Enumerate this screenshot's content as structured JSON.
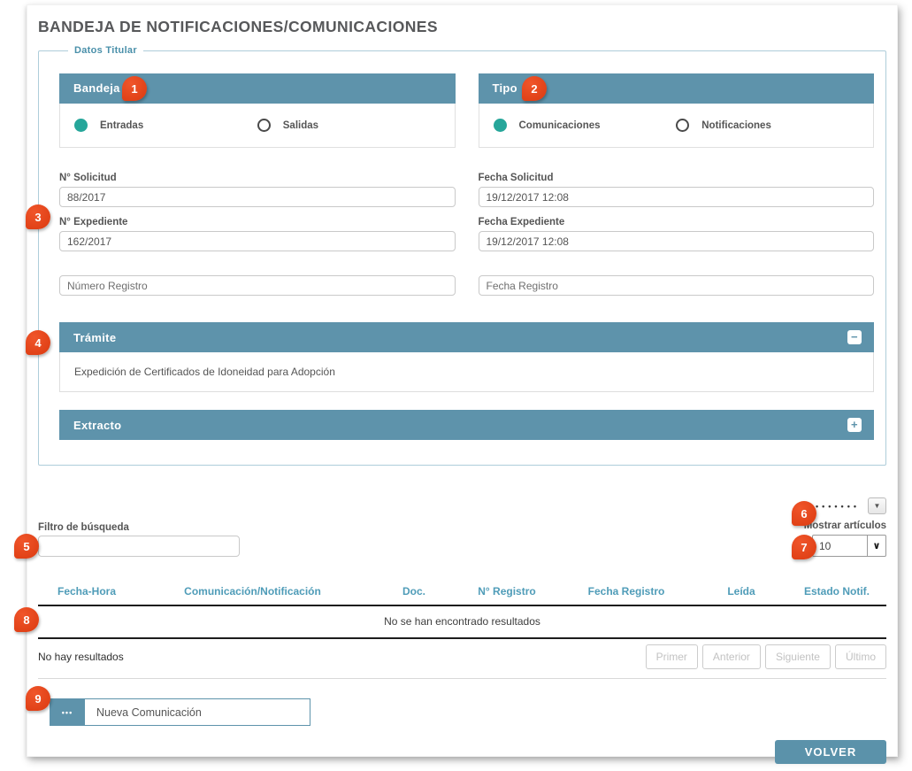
{
  "header": {
    "title": "BANDEJA DE NOTIFICACIONES/COMUNICACIONES"
  },
  "fieldset": {
    "legend": "Datos Titular"
  },
  "bandeja": {
    "title": "Bandeja",
    "options": [
      {
        "label": "Entradas",
        "selected": true
      },
      {
        "label": "Salidas",
        "selected": false
      }
    ]
  },
  "tipo": {
    "title": "Tipo",
    "options": [
      {
        "label": "Comunicaciones",
        "selected": true
      },
      {
        "label": "Notificaciones",
        "selected": false
      }
    ]
  },
  "fields": {
    "solicitud": {
      "label": "N° Solicitud",
      "value": "88/2017"
    },
    "fecha_solicitud": {
      "label": "Fecha Solicitud",
      "value": "19/12/2017 12:08"
    },
    "expediente": {
      "label": "N° Expediente",
      "value": "162/2017"
    },
    "fecha_expediente": {
      "label": "Fecha Expediente",
      "value": "19/12/2017 12:08"
    },
    "numero_registro": {
      "placeholder": "Número Registro",
      "value": ""
    },
    "fecha_registro": {
      "placeholder": "Fecha Registro",
      "value": ""
    }
  },
  "accordions": {
    "tramite": {
      "title": "Trámite",
      "content": "Expedición de Certificados de Idoneidad para Adopción",
      "expanded": true
    },
    "extracto": {
      "title": "Extracto",
      "expanded": false
    }
  },
  "filter": {
    "label": "Filtro de búsqueda",
    "value": ""
  },
  "show_items": {
    "label": "Mostrar artículos",
    "value": "10"
  },
  "table": {
    "headers": [
      "Fecha-Hora",
      "Comunicación/Notificación",
      "Doc.",
      "N° Registro",
      "Fecha Registro",
      "Leída",
      "Estado Notif."
    ],
    "empty_message": "No se han encontrado resultados",
    "footer_status": "No hay resultados",
    "pagination": [
      "Primer",
      "Anterior",
      "Siguiente",
      "Último"
    ]
  },
  "buttons": {
    "nueva_comunicacion": "Nueva Comunicación",
    "volver": "VOLVER"
  },
  "icons": {
    "collapse": "−",
    "expand": "+",
    "ellipsis": "•••",
    "caret_down": "▼",
    "select_caret": "∨",
    "dots": "•••••••"
  },
  "annotations": {
    "badges": [
      "1",
      "2",
      "3",
      "4",
      "5",
      "6",
      "7",
      "8",
      "9"
    ]
  },
  "colors": {
    "panel_header_teal": "#5e93ab",
    "button_teal": "#5b92aa",
    "table_header_teal": "#4f9cb8",
    "legend_teal": "#4a90aa",
    "radio_selected_teal": "#26a69a",
    "badge_red": "#e5471f",
    "fieldset_border_blue": "#aecdda"
  }
}
